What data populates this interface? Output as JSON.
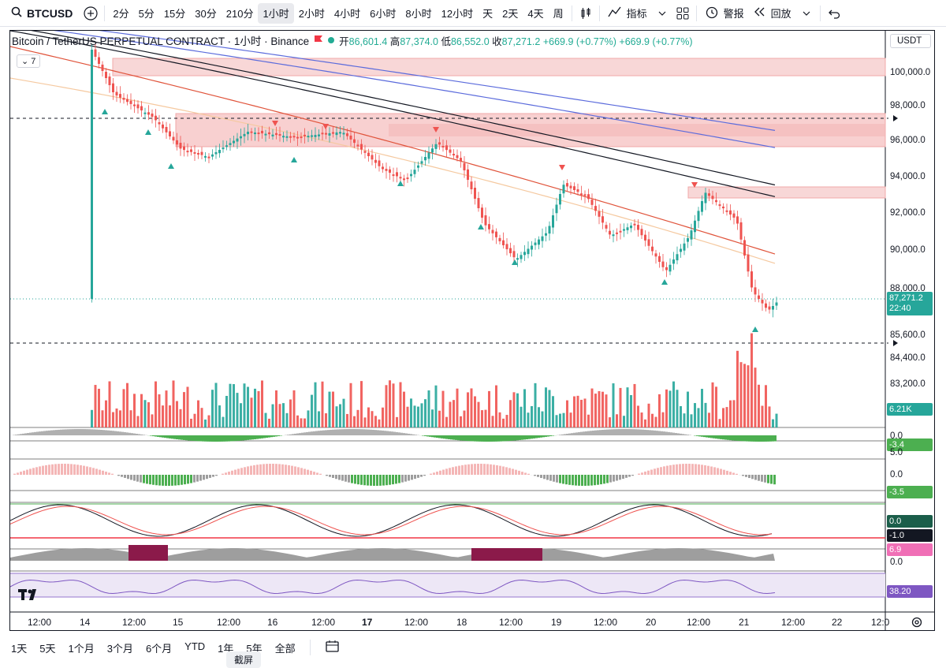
{
  "toolbar": {
    "symbol": "BTCUSD",
    "intervals": [
      "2分",
      "5分",
      "15分",
      "30分",
      "210分",
      "1小时",
      "2小时",
      "4小时",
      "6小时",
      "8小时",
      "12小时",
      "天",
      "2天",
      "4天",
      "周"
    ],
    "active_interval": "1小时",
    "indicators_label": "指标",
    "alert_label": "警报",
    "replay_label": "回放"
  },
  "legend": {
    "title": "Bitcoin / TetherUS PERPETUAL CONTRACT · 1小时 · Binance",
    "open_label": "开",
    "open": "86,601.4",
    "high_label": "高",
    "high": "87,374.0",
    "low_label": "低",
    "low": "86,552.0",
    "close_label": "收",
    "close": "87,271.2",
    "change": "+669.9 (+0.77%)",
    "change2": "+669.9 (+0.77%)",
    "indicators_count": "7"
  },
  "price_axis": {
    "currency": "USDT",
    "labels": [
      "100,000.0",
      "98,000.0",
      "96,000.0",
      "94,000.0",
      "92,000.0",
      "90,000.0",
      "88,000.0",
      "85,600.0",
      "84,400.0",
      "83,200.0"
    ],
    "current_price": "87,271.2",
    "countdown": "22:40",
    "volume_tag": "6.21K"
  },
  "panes": {
    "p1_zero": "0.0",
    "p1_tag": "-3.4",
    "p2_top": "5.0",
    "p2_zero": "0.0",
    "p2_tag": "-3.5",
    "p3_tag1": "0.0",
    "p3_tag2": "-1.0",
    "p4_tag": "6.9",
    "p4_zero": "0.0",
    "p5_tag": "38.20"
  },
  "time_axis": [
    "12:00",
    "14",
    "12:00",
    "15",
    "12:00",
    "16",
    "12:00",
    "17",
    "12:00",
    "18",
    "12:00",
    "19",
    "12:00",
    "20",
    "12:00",
    "21",
    "12:00",
    "22",
    "12:0"
  ],
  "bottom": {
    "ranges": [
      "1天",
      "5天",
      "1个月",
      "3个月",
      "6个月",
      "YTD",
      "1年",
      "5年",
      "全部"
    ],
    "tooltip": "截屏"
  },
  "colors": {
    "up": "#26a69a",
    "down": "#ef5350",
    "accent": "#2962ff",
    "rsi": "#7e57c2"
  }
}
